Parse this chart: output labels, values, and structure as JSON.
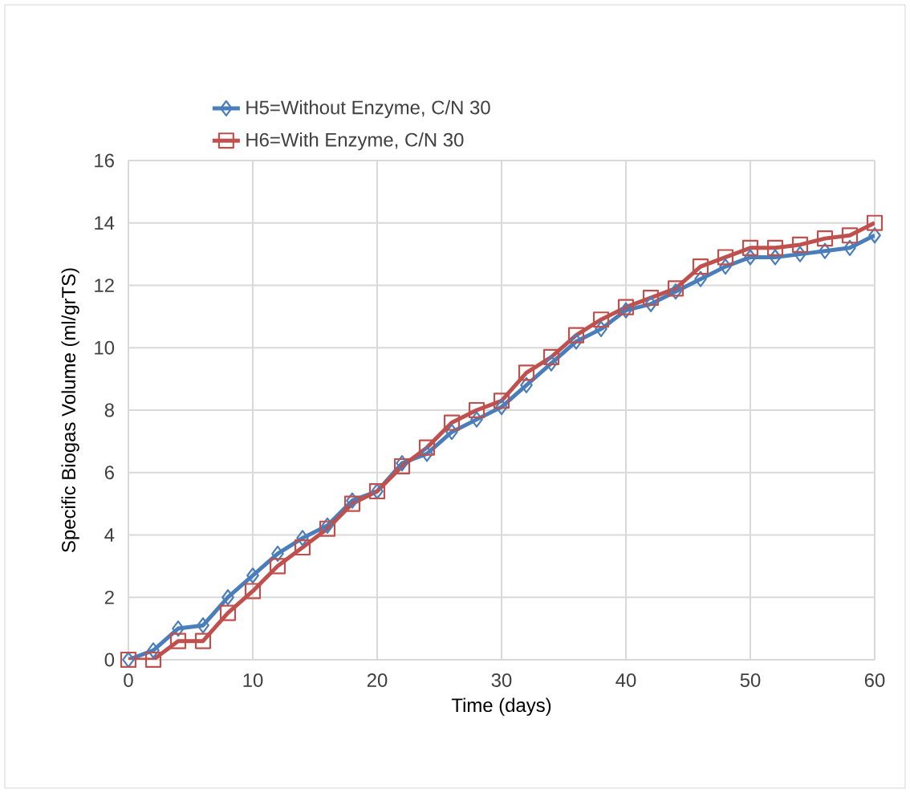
{
  "chart_data": {
    "type": "line",
    "xlabel": "Time (days)",
    "ylabel": "Specific Biogas Volume (ml/grTS)",
    "x": [
      0,
      2,
      4,
      6,
      8,
      10,
      12,
      14,
      16,
      18,
      20,
      22,
      24,
      26,
      28,
      30,
      32,
      34,
      36,
      38,
      40,
      42,
      44,
      46,
      48,
      50,
      52,
      54,
      56,
      58,
      60
    ],
    "series": [
      {
        "name": "H5=Without Enzyme, C/N 30",
        "color": "#4a7ebb",
        "marker": "diamond",
        "values": [
          0,
          0.3,
          1.0,
          1.1,
          2.0,
          2.7,
          3.4,
          3.9,
          4.3,
          5.1,
          5.4,
          6.3,
          6.6,
          7.3,
          7.7,
          8.1,
          8.8,
          9.5,
          10.2,
          10.6,
          11.2,
          11.4,
          11.8,
          12.2,
          12.6,
          12.9,
          12.9,
          13.0,
          13.1,
          13.2,
          13.6
        ]
      },
      {
        "name": "H6=With Enzyme, C/N 30",
        "color": "#c0504d",
        "marker": "square",
        "values": [
          0,
          0,
          0.6,
          0.6,
          1.5,
          2.2,
          3.0,
          3.6,
          4.2,
          5.0,
          5.4,
          6.2,
          6.8,
          7.6,
          8.0,
          8.3,
          9.2,
          9.7,
          10.4,
          10.9,
          11.3,
          11.6,
          11.9,
          12.6,
          12.9,
          13.2,
          13.2,
          13.3,
          13.5,
          13.6,
          14.0
        ]
      }
    ],
    "xlim": [
      0,
      60
    ],
    "xticks": [
      0,
      10,
      20,
      30,
      40,
      50,
      60
    ],
    "ylim": [
      0,
      16
    ],
    "yticks": [
      0,
      2,
      4,
      6,
      8,
      10,
      12,
      14,
      16
    ],
    "grid": true,
    "legend": "top",
    "line_style": "solid"
  }
}
